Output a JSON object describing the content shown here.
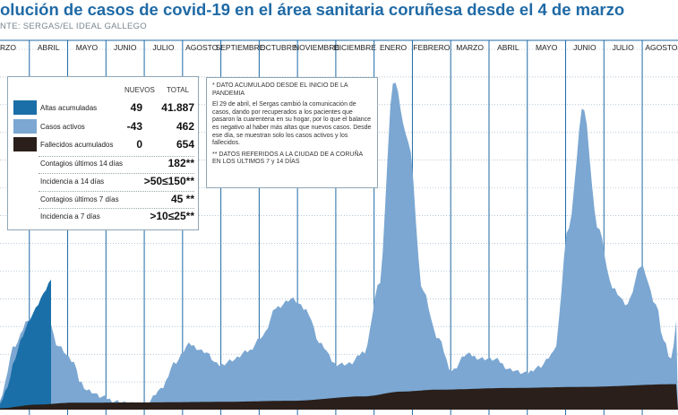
{
  "title": "olución de casos de covid-19 en el área sanitaria coruñesa desde el 4 de marzo",
  "source": "NTE: SERGAS/EL IDEAL GALLEGO",
  "chart_data": {
    "type": "area",
    "months": [
      "RZO",
      "ABRIL",
      "MAYO",
      "JUNIO",
      "JULIO",
      "AGOSTO",
      "SEPTIEMBRE",
      "OCTUBRE",
      "NOVIEMBRE",
      "DICIEMBRE",
      "ENERO",
      "FEBRERO",
      "MARZO",
      "ABRIL",
      "MAYO",
      "JUNIO",
      "JULIO",
      "AGOSTO"
    ],
    "ylim": [
      0,
      1300
    ],
    "colors": {
      "activos": "#7ba7d2",
      "altas": "#1a6fa8",
      "fallecidos": "#2a1f1a",
      "grid": "#1f6aa6",
      "title": "#1f6aa6"
    },
    "series": [
      {
        "name": "Casos activos",
        "key": "activos",
        "x": [
          0,
          2,
          4,
          6,
          8,
          10,
          11,
          12,
          14,
          16,
          18,
          20,
          22,
          24,
          26,
          28,
          30,
          32,
          34,
          36,
          38,
          40,
          42,
          44,
          46,
          48,
          50,
          52,
          54,
          56,
          58,
          60,
          62,
          64,
          66,
          68,
          70,
          72,
          74,
          76,
          78,
          80,
          82,
          84,
          86,
          88,
          90,
          91,
          92,
          93
        ],
        "values": [
          40,
          230,
          330,
          390,
          230,
          175,
          100,
          70,
          45,
          30,
          20,
          20,
          70,
          170,
          235,
          210,
          160,
          180,
          210,
          265,
          370,
          400,
          360,
          235,
          165,
          165,
          210,
          450,
          1190,
          970,
          430,
          260,
          140,
          200,
          185,
          180,
          145,
          130,
          155,
          205,
          660,
          1090,
          660,
          440,
          380,
          520,
          380,
          250,
          180,
          350
        ]
      },
      {
        "name": "Altas acumuladas",
        "key": "altas",
        "x": [
          0,
          1,
          2,
          3,
          4,
          5,
          6,
          7
        ],
        "values": [
          20,
          80,
          180,
          260,
          320,
          370,
          420,
          470
        ]
      },
      {
        "name": "Fallecidos acumulados",
        "key": "fallecidos",
        "x": [
          0,
          5,
          10,
          20,
          30,
          40,
          50,
          55,
          60,
          70,
          80,
          93
        ],
        "values": [
          5,
          18,
          25,
          26,
          28,
          32,
          48,
          65,
          72,
          78,
          82,
          92
        ]
      }
    ],
    "legend": {
      "headers": [
        "NUEVOS",
        "TOTAL"
      ],
      "rows": [
        {
          "label": "Altas acumuladas",
          "nuevos": "49",
          "total": "41.887",
          "swatch": "#1a6fa8"
        },
        {
          "label": "Casos activos",
          "nuevos": "-43",
          "total": "462",
          "swatch": "#7ba7d2"
        },
        {
          "label": "Fallecidos acumulados",
          "nuevos": "0",
          "total": "654",
          "swatch": "#2a1f1a"
        }
      ],
      "extra": [
        {
          "label": "Contagios últimos 14 días",
          "value": "182**"
        },
        {
          "label": "Incidencia a 14 días",
          "value": ">50≤150**"
        },
        {
          "label": "Contagios últimos 7 días",
          "value": "45 **"
        },
        {
          "label": "Incidencia a 7 días",
          "value": ">10≤25**"
        }
      ]
    },
    "notes": [
      "* DATO ACUMULADO DESDE EL INICIO DE LA PANDEMIA",
      "El 29 de abril, el Sergas cambió la comunicación de casos, dando por recuperados a los pacientes que pasaron la cuarentena en su hogar, por lo que el balance es negativo al haber más altas que nuevos casos. Desde ese día, se muestran solo los casos activos y los fallecidos.",
      "** DATOS REFERIDOS A LA CIUDAD DE A CORUÑA EN LOS ÚLTIMOS 7 y 14 DÍAS"
    ]
  }
}
